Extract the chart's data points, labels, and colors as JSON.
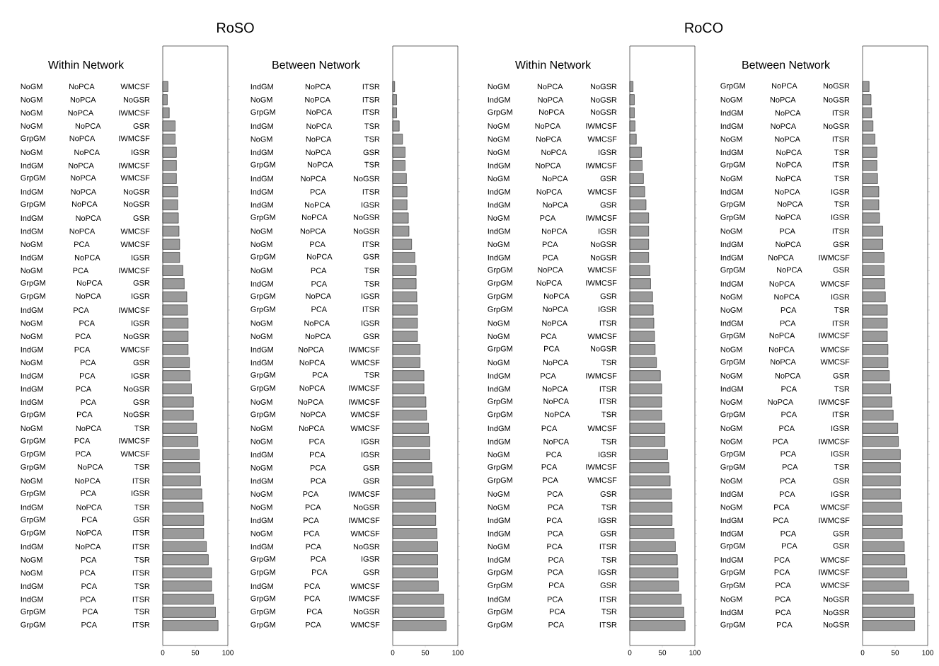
{
  "chart_data": [
    {
      "type": "bar",
      "orientation": "horizontal",
      "title": "RoSO",
      "subtitle": "Within Network",
      "color": "#9a9a9a",
      "xlim": [
        0,
        100
      ],
      "xticks": [
        0,
        50,
        100
      ],
      "categories": [
        "NoGM NoPCA WMCSF",
        "NoGM NoPCA NoGSR",
        "NoGM NoPCA IWMCSF",
        "NoGM NoPCA GSR",
        "GrpGM NoPCA IWMCSF",
        "NoGM NoPCA IGSR",
        "IndGM NoPCA IWMCSF",
        "GrpGM NoPCA WMCSF",
        "IndGM NoPCA NoGSR",
        "GrpGM NoPCA NoGSR",
        "IndGM NoPCA GSR",
        "IndGM NoPCA WMCSF",
        "NoGM PCA WMCSF",
        "IndGM NoPCA IGSR",
        "NoGM PCA IWMCSF",
        "GrpGM NoPCA GSR",
        "GrpGM NoPCA IGSR",
        "IndGM PCA IWMCSF",
        "NoGM PCA IGSR",
        "NoGM PCA NoGSR",
        "IndGM PCA WMCSF",
        "NoGM PCA GSR",
        "IndGM PCA IGSR",
        "IndGM PCA NoGSR",
        "IndGM PCA GSR",
        "GrpGM PCA NoGSR",
        "NoGM NoPCA TSR",
        "GrpGM PCA IWMCSF",
        "GrpGM PCA WMCSF",
        "GrpGM NoPCA TSR",
        "NoGM NoPCA ITSR",
        "GrpGM PCA IGSR",
        "IndGM NoPCA TSR",
        "GrpGM PCA GSR",
        "GrpGM NoPCA ITSR",
        "IndGM NoPCA ITSR",
        "NoGM PCA TSR",
        "NoGM PCA ITSR",
        "IndGM PCA TSR",
        "IndGM PCA ITSR",
        "GrpGM PCA TSR",
        "GrpGM PCA ITSR"
      ],
      "values": [
        8,
        7,
        10,
        19,
        19,
        21,
        21,
        21,
        23,
        23,
        24,
        25,
        26,
        26,
        31,
        33,
        37,
        38,
        39,
        39,
        39,
        41,
        42,
        44,
        47,
        47,
        52,
        54,
        56,
        57,
        58,
        60,
        62,
        63,
        63,
        67,
        70,
        75,
        75,
        78,
        81,
        85
      ]
    },
    {
      "type": "bar",
      "orientation": "horizontal",
      "subtitle": "Between Network",
      "color": "#9a9a9a",
      "xlim": [
        0,
        100
      ],
      "xticks": [
        0,
        50,
        100
      ],
      "categories": [
        "IndGM NoPCA ITSR",
        "NoGM NoPCA ITSR",
        "GrpGM NoPCA ITSR",
        "IndGM NoPCA TSR",
        "NoGM NoPCA TSR",
        "IndGM NoPCA GSR",
        "GrpGM NoPCA TSR",
        "IndGM NoPCA NoGSR",
        "IndGM PCA ITSR",
        "IndGM NoPCA IGSR",
        "GrpGM NoPCA NoGSR",
        "NoGM NoPCA NoGSR",
        "NoGM PCA ITSR",
        "GrpGM NoPCA GSR",
        "NoGM PCA TSR",
        "IndGM PCA TSR",
        "GrpGM NoPCA IGSR",
        "GrpGM PCA ITSR",
        "NoGM NoPCA IGSR",
        "NoGM NoPCA GSR",
        "IndGM NoPCA IWMCSF",
        "IndGM NoPCA WMCSF",
        "GrpGM PCA TSR",
        "GrpGM NoPCA IWMCSF",
        "NoGM NoPCA IWMCSF",
        "GrpGM NoPCA WMCSF",
        "NoGM NoPCA WMCSF",
        "NoGM PCA IGSR",
        "IndGM PCA IGSR",
        "NoGM PCA GSR",
        "IndGM PCA GSR",
        "NoGM PCA IWMCSF",
        "NoGM PCA NoGSR",
        "IndGM PCA IWMCSF",
        "NoGM PCA WMCSF",
        "IndGM PCA NoGSR",
        "GrpGM PCA IGSR",
        "GrpGM PCA GSR",
        "IndGM PCA WMCSF",
        "GrpGM PCA IWMCSF",
        "GrpGM PCA NoGSR",
        "GrpGM PCA WMCSF"
      ],
      "values": [
        3,
        6,
        6,
        10,
        15,
        19,
        19,
        21,
        22,
        22,
        24,
        25,
        29,
        34,
        36,
        36,
        37,
        38,
        38,
        38,
        42,
        42,
        48,
        48,
        51,
        52,
        55,
        57,
        57,
        60,
        62,
        65,
        66,
        66,
        68,
        69,
        69,
        69,
        70,
        78,
        79,
        82
      ]
    },
    {
      "type": "bar",
      "orientation": "horizontal",
      "title": "RoCO",
      "subtitle": "Within Network",
      "color": "#9a9a9a",
      "xlim": [
        0,
        100
      ],
      "xticks": [
        0,
        50,
        100
      ],
      "categories": [
        "NoGM NoPCA NoGSR",
        "IndGM NoPCA NoGSR",
        "GrpGM NoPCA NoGSR",
        "NoGM NoPCA IWMCSF",
        "NoGM NoPCA WMCSF",
        "NoGM NoPCA IGSR",
        "IndGM NoPCA IWMCSF",
        "NoGM NoPCA GSR",
        "IndGM NoPCA WMCSF",
        "IndGM NoPCA GSR",
        "NoGM PCA IWMCSF",
        "IndGM NoPCA IGSR",
        "NoGM PCA NoGSR",
        "IndGM PCA NoGSR",
        "GrpGM NoPCA WMCSF",
        "GrpGM NoPCA IWMCSF",
        "GrpGM NoPCA GSR",
        "GrpGM NoPCA IGSR",
        "NoGM NoPCA ITSR",
        "NoGM PCA WMCSF",
        "GrpGM PCA NoGSR",
        "NoGM NoPCA TSR",
        "IndGM PCA IWMCSF",
        "IndGM NoPCA ITSR",
        "GrpGM NoPCA ITSR",
        "GrpGM NoPCA TSR",
        "IndGM PCA WMCSF",
        "IndGM NoPCA TSR",
        "NoGM PCA IGSR",
        "GrpGM PCA IWMCSF",
        "GrpGM PCA WMCSF",
        "NoGM PCA GSR",
        "NoGM PCA TSR",
        "IndGM PCA IGSR",
        "IndGM PCA GSR",
        "NoGM PCA ITSR",
        "IndGM PCA TSR",
        "GrpGM PCA IGSR",
        "GrpGM PCA GSR",
        "IndGM PCA ITSR",
        "GrpGM PCA TSR",
        "GrpGM PCA ITSR"
      ],
      "values": [
        5,
        7,
        7,
        8,
        10,
        18,
        19,
        21,
        23,
        25,
        29,
        29,
        29,
        29,
        31,
        32,
        35,
        36,
        37,
        38,
        39,
        41,
        47,
        49,
        49,
        49,
        54,
        54,
        58,
        60,
        62,
        64,
        65,
        65,
        68,
        70,
        73,
        74,
        75,
        79,
        83,
        85
      ]
    },
    {
      "type": "bar",
      "orientation": "horizontal",
      "subtitle": "Between Network",
      "color": "#9a9a9a",
      "xlim": [
        0,
        100
      ],
      "xticks": [
        0,
        50,
        100
      ],
      "categories": [
        "GrpGM NoPCA NoGSR",
        "NoGM NoPCA NoGSR",
        "IndGM NoPCA ITSR",
        "IndGM NoPCA NoGSR",
        "NoGM NoPCA ITSR",
        "IndGM NoPCA TSR",
        "GrpGM NoPCA ITSR",
        "NoGM NoPCA TSR",
        "IndGM NoPCA IGSR",
        "GrpGM NoPCA TSR",
        "GrpGM NoPCA IGSR",
        "NoGM PCA ITSR",
        "IndGM NoPCA GSR",
        "IndGM NoPCA IWMCSF",
        "GrpGM NoPCA GSR",
        "IndGM NoPCA WMCSF",
        "NoGM NoPCA IGSR",
        "NoGM PCA TSR",
        "IndGM PCA ITSR",
        "GrpGM NoPCA IWMCSF",
        "NoGM NoPCA WMCSF",
        "GrpGM NoPCA WMCSF",
        "NoGM NoPCA GSR",
        "IndGM PCA TSR",
        "NoGM NoPCA IWMCSF",
        "GrpGM PCA ITSR",
        "NoGM PCA IGSR",
        "NoGM PCA IWMCSF",
        "GrpGM PCA IGSR",
        "GrpGM PCA TSR",
        "NoGM PCA GSR",
        "IndGM PCA IGSR",
        "NoGM PCA WMCSF",
        "IndGM PCA IWMCSF",
        "IndGM PCA GSR",
        "GrpGM PCA GSR",
        "IndGM PCA WMCSF",
        "GrpGM PCA IWMCSF",
        "GrpGM PCA WMCSF",
        "NoGM PCA NoGSR",
        "IndGM PCA NoGSR",
        "GrpGM PCA NoGSR"
      ],
      "values": [
        10,
        13,
        14,
        16,
        19,
        22,
        22,
        23,
        25,
        25,
        26,
        31,
        31,
        33,
        33,
        34,
        35,
        38,
        38,
        38,
        39,
        39,
        41,
        43,
        45,
        47,
        54,
        55,
        58,
        58,
        58,
        58,
        60,
        61,
        61,
        64,
        65,
        68,
        71,
        78,
        80,
        80
      ]
    }
  ]
}
